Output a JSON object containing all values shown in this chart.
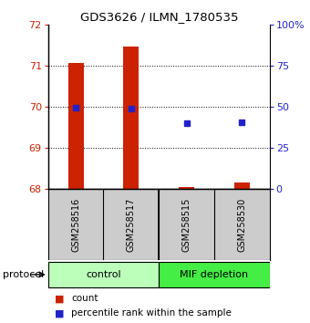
{
  "title": "GDS3626 / ILMN_1780535",
  "samples": [
    "GSM258516",
    "GSM258517",
    "GSM258515",
    "GSM258530"
  ],
  "groups": [
    {
      "label": "control",
      "indices": [
        0,
        1
      ],
      "color": "#bbffbb"
    },
    {
      "label": "MIF depletion",
      "indices": [
        2,
        3
      ],
      "color": "#44ee44"
    }
  ],
  "ylim_left": [
    68,
    72
  ],
  "ylim_right": [
    0,
    100
  ],
  "yticks_left": [
    68,
    69,
    70,
    71,
    72
  ],
  "yticks_right": [
    0,
    25,
    50,
    75,
    100
  ],
  "ytick_labels_right": [
    "0",
    "25",
    "50",
    "75",
    "100%"
  ],
  "bar_bottoms": [
    68.0,
    68.0,
    68.0,
    68.0
  ],
  "bar_tops": [
    71.05,
    71.45,
    68.05,
    68.15
  ],
  "percentile_values": [
    49.5,
    49.0,
    40.0,
    40.5
  ],
  "bar_color": "#cc2200",
  "percentile_color": "#2222cc",
  "left_tick_color": "#cc2200",
  "right_tick_color": "#2222cc",
  "sample_bg_color": "#cccccc",
  "protocol_label": "protocol",
  "bg_color": "#ffffff"
}
